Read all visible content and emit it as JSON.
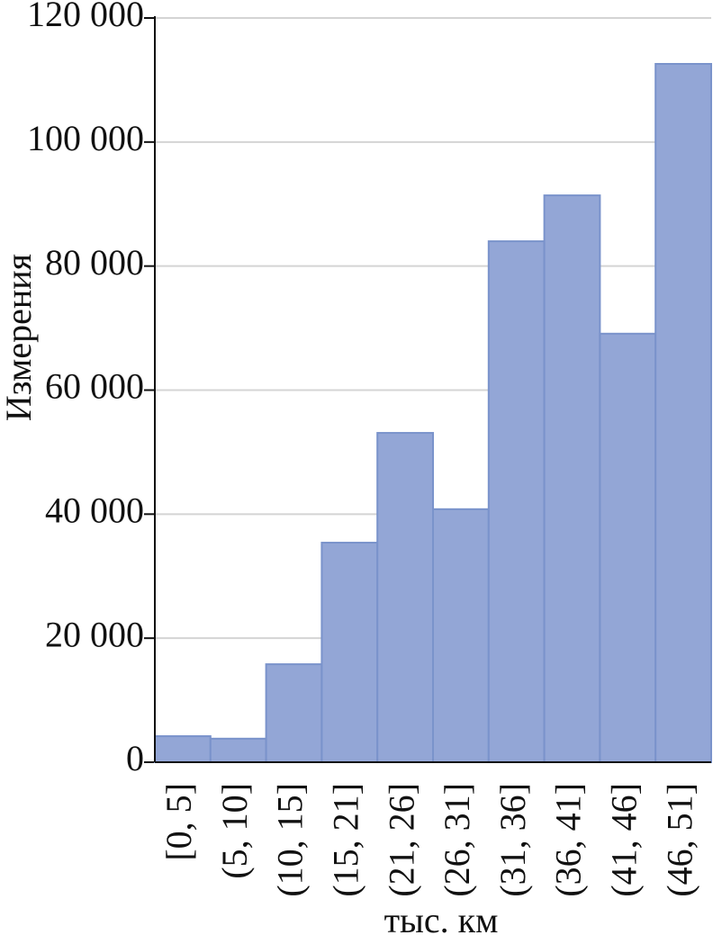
{
  "chart_data": {
    "type": "bar",
    "x_label": "тыс. км",
    "y_label": "Измерения",
    "categories": [
      "[0, 5]",
      "(5, 10]",
      "(10, 15]",
      "(15, 21]",
      "(21, 26]",
      "(26, 31]",
      "(31, 36]",
      "(36, 41]",
      "(41, 46]",
      "(46, 51]"
    ],
    "values": [
      4200,
      3800,
      15800,
      35400,
      53100,
      40800,
      84000,
      91400,
      69100,
      112600
    ],
    "color": "#93a6d6",
    "ylim": [
      0,
      120000
    ],
    "yticks": [
      0,
      {
        "value": 20000,
        "label": "20 000"
      },
      {
        "value": 40000,
        "label": "40 000"
      },
      {
        "value": 60000,
        "label": "60 000"
      },
      {
        "value": 80000,
        "label": "80 000"
      },
      {
        "value": 100000,
        "label": "100 000"
      },
      {
        "value": 120000,
        "label": "120 000"
      }
    ],
    "grid": true
  }
}
